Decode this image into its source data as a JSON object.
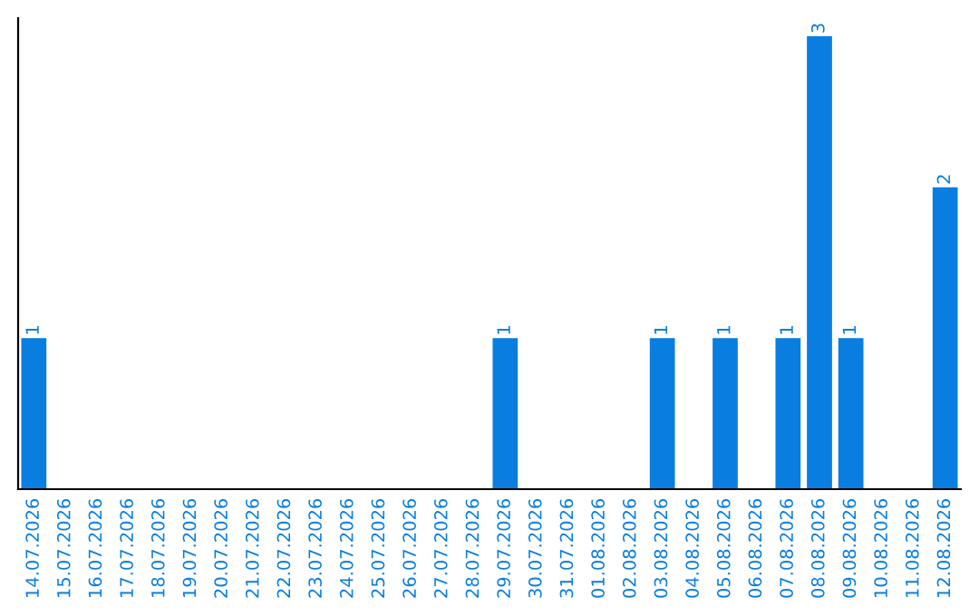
{
  "chart_data": {
    "type": "bar",
    "categories": [
      "14.07.2026",
      "15.07.2026",
      "16.07.2026",
      "17.07.2026",
      "18.07.2026",
      "19.07.2026",
      "20.07.2026",
      "21.07.2026",
      "22.07.2026",
      "23.07.2026",
      "24.07.2026",
      "25.07.2026",
      "26.07.2026",
      "27.07.2026",
      "28.07.2026",
      "29.07.2026",
      "30.07.2026",
      "31.07.2026",
      "01.08.2026",
      "02.08.2026",
      "03.08.2026",
      "04.08.2026",
      "05.08.2026",
      "06.08.2026",
      "07.08.2026",
      "08.08.2026",
      "09.08.2026",
      "10.08.2026",
      "11.08.2026",
      "12.08.2026"
    ],
    "values": [
      1,
      0,
      0,
      0,
      0,
      0,
      0,
      0,
      0,
      0,
      0,
      0,
      0,
      0,
      0,
      1,
      0,
      0,
      0,
      0,
      1,
      0,
      1,
      0,
      1,
      3,
      1,
      0,
      0,
      2
    ],
    "value_labels": [
      "1",
      null,
      null,
      null,
      null,
      null,
      null,
      null,
      null,
      null,
      null,
      null,
      null,
      null,
      null,
      "1",
      null,
      null,
      null,
      null,
      "1",
      null,
      "1",
      null,
      "1",
      "3",
      "1",
      null,
      null,
      "2"
    ],
    "color": "#0a7ee0",
    "grid": false,
    "legend": false
  }
}
